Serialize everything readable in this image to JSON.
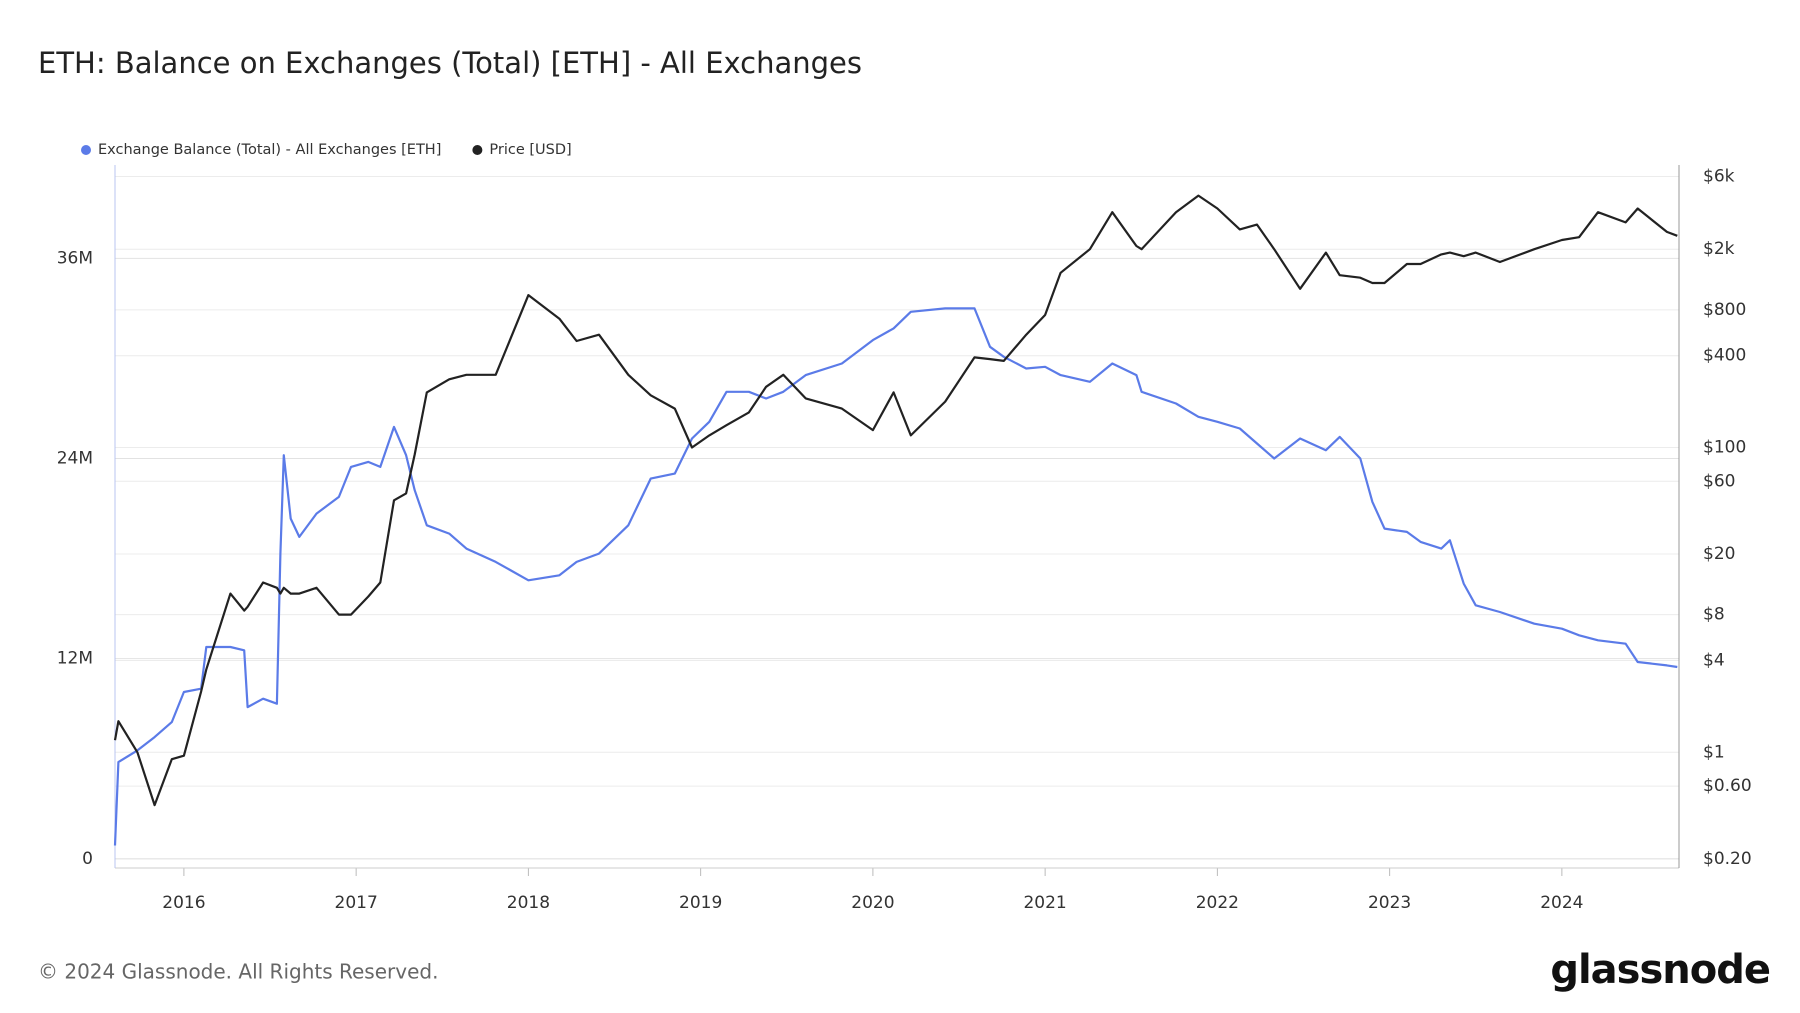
{
  "chart_data": {
    "type": "line",
    "title": "ETH: Balance on Exchanges (Total) [ETH] - All Exchanges",
    "footer": "© 2024 Glassnode. All Rights Reserved.",
    "brand": "glassnode",
    "x": [
      2015.6,
      2015.62,
      2015.73,
      2015.83,
      2015.93,
      2016.0,
      2016.1,
      2016.13,
      2016.27,
      2016.35,
      2016.37,
      2016.46,
      2016.54,
      2016.56,
      2016.58,
      2016.62,
      2016.67,
      2016.77,
      2016.9,
      2016.97,
      2017.07,
      2017.14,
      2017.22,
      2017.29,
      2017.34,
      2017.41,
      2017.54,
      2017.64,
      2017.81,
      2018.0,
      2018.18,
      2018.28,
      2018.41,
      2018.58,
      2018.71,
      2018.85,
      2018.95,
      2019.05,
      2019.15,
      2019.28,
      2019.38,
      2019.48,
      2019.61,
      2019.82,
      2020.0,
      2020.12,
      2020.22,
      2020.42,
      2020.59,
      2020.68,
      2020.76,
      2020.89,
      2021.0,
      2021.09,
      2021.26,
      2021.39,
      2021.53,
      2021.56,
      2021.76,
      2021.89,
      2022.0,
      2022.13,
      2022.23,
      2022.33,
      2022.48,
      2022.63,
      2022.71,
      2022.83,
      2022.9,
      2022.97,
      2023.1,
      2023.18,
      2023.3,
      2023.35,
      2023.43,
      2023.5,
      2023.64,
      2023.84,
      2024.0,
      2024.1,
      2024.21,
      2024.37,
      2024.44,
      2024.61,
      2024.67
    ],
    "series": [
      {
        "name": "Exchange Balance (Total) - All Exchanges [ETH]",
        "color": "#5b7be8",
        "axis": "y",
        "values": [
          800000,
          5800000,
          6500000,
          7300000,
          8200000,
          10000000,
          10200000,
          12700000,
          12700000,
          12500000,
          9100000,
          9600000,
          9300000,
          18300000,
          24200000,
          20400000,
          19300000,
          20700000,
          21700000,
          23500000,
          23800000,
          23500000,
          25900000,
          24200000,
          22100000,
          20000000,
          19500000,
          18600000,
          17800000,
          16700000,
          17000000,
          17800000,
          18300000,
          20000000,
          22800000,
          23100000,
          25200000,
          26200000,
          28000000,
          28000000,
          27600000,
          28000000,
          29000000,
          29700000,
          31100000,
          31800000,
          32800000,
          33000000,
          33000000,
          30700000,
          30100000,
          29400000,
          29500000,
          29000000,
          28600000,
          29700000,
          29000000,
          28000000,
          27300000,
          26500000,
          26200000,
          25800000,
          24900000,
          24000000,
          25200000,
          24500000,
          25300000,
          24000000,
          21400000,
          19800000,
          19600000,
          19000000,
          18600000,
          19100000,
          16500000,
          15200000,
          14800000,
          14100000,
          13800000,
          13400000,
          13100000,
          12900000,
          11800000,
          11600000,
          11500000
        ]
      },
      {
        "name": "Price [USD]",
        "color": "#222222",
        "axis": "y2",
        "values": [
          1.2,
          1.6,
          1.0,
          0.45,
          0.9,
          0.95,
          2.5,
          3.5,
          11,
          8.5,
          9,
          13,
          12,
          11,
          12,
          11,
          11,
          12,
          8,
          8,
          10.5,
          13,
          45,
          50,
          90,
          230,
          280,
          300,
          300,
          1000,
          700,
          500,
          550,
          300,
          220,
          180,
          100,
          120,
          140,
          170,
          250,
          300,
          210,
          180,
          130,
          230,
          120,
          200,
          390,
          380,
          370,
          550,
          740,
          1400,
          2000,
          3500,
          2100,
          2000,
          3500,
          4500,
          3700,
          2700,
          2900,
          2000,
          1100,
          1900,
          1350,
          1300,
          1200,
          1200,
          1600,
          1600,
          1850,
          1900,
          1800,
          1900,
          1650,
          2000,
          2300,
          2400,
          3500,
          3000,
          3700,
          2600,
          2450
        ]
      }
    ],
    "xlim": [
      2015.6,
      2024.68
    ],
    "xticks": [
      2016,
      2017,
      2018,
      2019,
      2020,
      2021,
      2022,
      2023,
      2024
    ],
    "ylim": [
      -550000,
      41600000
    ],
    "yticks": [
      0,
      {
        "value": 12000000,
        "label": "12M"
      },
      {
        "value": 24000000,
        "label": "24M"
      },
      {
        "value": 36000000,
        "label": "36M"
      }
    ],
    "y2lim": [
      0.174,
      7140
    ],
    "y2scale": "log",
    "y2ticks": [
      {
        "value": 0.2,
        "label": "$0.20"
      },
      {
        "value": 0.6,
        "label": "$0.60"
      },
      {
        "value": 1,
        "label": "$1"
      },
      {
        "value": 4,
        "label": "$4"
      },
      {
        "value": 8,
        "label": "$8"
      },
      {
        "value": 20,
        "label": "$20"
      },
      {
        "value": 60,
        "label": "$60"
      },
      {
        "value": 100,
        "label": "$100"
      },
      {
        "value": 400,
        "label": "$400"
      },
      {
        "value": 800,
        "label": "$800"
      },
      {
        "value": 2000,
        "label": "$2k"
      },
      {
        "value": 6000,
        "label": "$6k"
      }
    ],
    "grid": true
  }
}
